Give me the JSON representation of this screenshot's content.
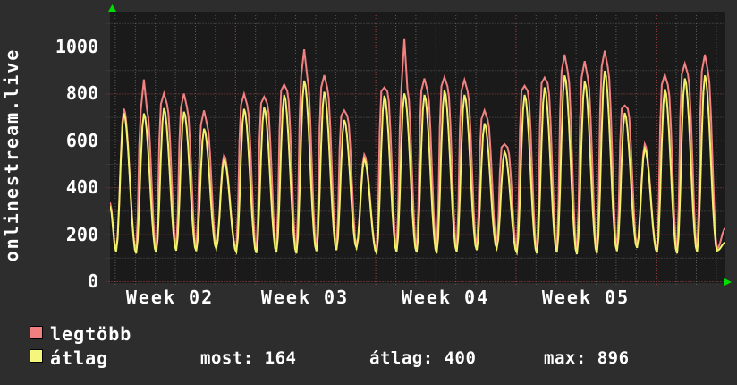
{
  "title_vertical": "onlinestream.live",
  "colors": {
    "background": "#2d2d2d",
    "plot_background": "#1a1a1a",
    "text": "#ffffff",
    "grid_minor": "#5a5a5a",
    "grid_major": "#a84444",
    "series_max": "#f28181",
    "series_avg": "#f2f26a",
    "legend_swatch_max": "#f08080",
    "legend_swatch_avg": "#f6f67e",
    "axis_arrow": "#00dd00"
  },
  "y_axis": {
    "labels": [
      "1000",
      "800",
      "600",
      "400",
      "200",
      "0"
    ]
  },
  "x_axis": {
    "labels": [
      "Week 02",
      "Week 03",
      "Week 04",
      "Week 05"
    ]
  },
  "legend": {
    "items": [
      {
        "label": "legtöbb",
        "color": "#f08080"
      },
      {
        "label": "átlag",
        "color": "#f6f67e"
      }
    ]
  },
  "stats_row": {
    "most": "most: 164",
    "atlag": "átlag: 400",
    "max": "max: 896"
  },
  "chart_data": {
    "type": "line",
    "title": "onlinestream.live",
    "x_axis": {
      "tick_labels": [
        "Week 02",
        "Week 03",
        "Week 04",
        "Week 05"
      ],
      "unit": "day",
      "days_shown": 30.7
    },
    "ylim": [
      0,
      1145
    ],
    "y_ticks": [
      0,
      200,
      400,
      600,
      800,
      1000
    ],
    "grid": {
      "h_major_every": 200,
      "h_minor_every": 100,
      "v_major": "week",
      "v_minor": "day",
      "style": "dotted"
    },
    "legend_position": "bottom-left",
    "series": [
      {
        "name": "legtöbb",
        "color": "#f28181",
        "role": "daily maximum viewers",
        "daily_peaks": [
          735,
          860,
          800,
          800,
          728,
          537,
          798,
          786,
          838,
          988,
          878,
          728,
          539,
          826,
          1035,
          864,
          870,
          858,
          728,
          584,
          833,
          868,
          966,
          938,
          982,
          749,
          584,
          880,
          927,
          966
        ],
        "start_value": 335,
        "end_value": 225
      },
      {
        "name": "átlag",
        "color": "#f2f26a",
        "role": "daily average viewers",
        "daily_peaks": [
          715,
          715,
          737,
          722,
          650,
          518,
          734,
          740,
          794,
          855,
          807,
          687,
          520,
          791,
          800,
          794,
          813,
          794,
          673,
          552,
          794,
          826,
          877,
          851,
          896,
          717,
          565,
          819,
          864,
          877
        ],
        "start_value": 320,
        "end_value": 164
      }
    ],
    "daily_troughs": [
      125,
      118,
      122,
      130,
      128,
      138,
      125,
      120,
      122,
      118,
      128,
      132,
      142,
      120,
      125,
      122,
      118,
      125,
      132,
      140,
      122,
      118,
      122,
      115,
      118,
      128,
      142,
      122,
      118,
      125,
      130
    ],
    "stats": {
      "most": 164,
      "atlag": 400,
      "max": 896
    }
  }
}
